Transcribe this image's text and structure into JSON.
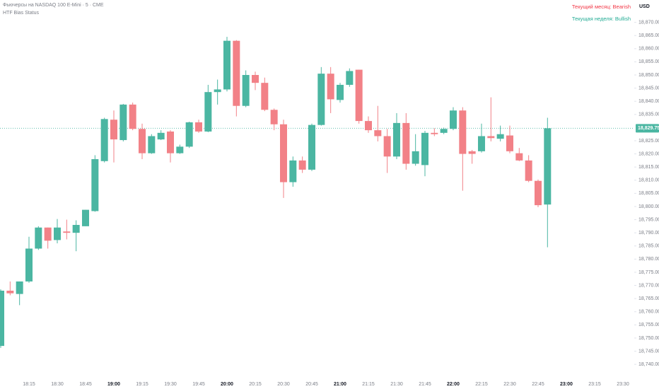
{
  "chart_data": {
    "type": "candlestick",
    "title": "Фьючерсы на NASDAQ 100 E-Mini · 5 · CME",
    "subtitle": "HTF Bias Status",
    "currency": "USD",
    "annotations": [
      {
        "text": "Текущий месяц: Bearish",
        "color": "#f23645"
      },
      {
        "text": "Текущая неделя: Bullish",
        "color": "#22ab94"
      }
    ],
    "up_color": "#4bb6a2",
    "down_color": "#f28187",
    "last_price": {
      "value": 18829.75,
      "label": "18,829.75"
    },
    "categories": [
      null,
      null,
      null,
      "18:15",
      null,
      null,
      "18:30",
      null,
      null,
      "18:45",
      null,
      null,
      "19:00",
      null,
      null,
      "19:15",
      null,
      null,
      "19:30",
      null,
      null,
      "19:45",
      null,
      null,
      "20:00",
      null,
      null,
      "20:15",
      null,
      null,
      "20:30",
      null,
      null,
      "20:45",
      null,
      null,
      "21:00",
      null,
      null,
      "21:15",
      null,
      null,
      "21:30",
      null,
      null,
      "21:45",
      null,
      null,
      "22:00",
      null,
      null,
      "22:15",
      null,
      null,
      "22:30",
      null,
      null,
      "22:45",
      null,
      null,
      "23:00",
      null,
      null,
      "23:15",
      null,
      null,
      "23:30",
      null
    ],
    "open": [
      18747,
      18768,
      18766.75,
      18771.5,
      18784,
      18792,
      18787.25,
      18790.5,
      18790,
      18792.5,
      18798.25,
      18817.25,
      18833,
      18825.25,
      18838.75,
      18829.5,
      18820.25,
      18825.5,
      18828.5,
      18820.25,
      18822.75,
      18832,
      18828.5,
      18843.5,
      18844.5,
      18863,
      18838.25,
      18850,
      18847,
      18836.75,
      18831.25,
      18809.25,
      18817.5,
      18814,
      18831,
      18850.5,
      18840.5,
      18846.25,
      18852,
      18832.5,
      18829,
      18826.75,
      18819,
      18831.75,
      18816.25,
      18815.75,
      18828,
      18828,
      18829.5,
      18836.5,
      18821,
      18821,
      18826.75,
      18825.75,
      18827,
      18820.25,
      18817.5,
      18809.75,
      18800.75,
      null,
      null,
      null,
      null,
      null,
      null,
      null,
      null,
      null
    ],
    "high": [
      18768.5,
      18771.5,
      18771.5,
      18788.5,
      18792.5,
      18792,
      18795.25,
      18795,
      18794.75,
      18798.75,
      18819.5,
      18833.75,
      18836.5,
      18839,
      18839.5,
      18831.5,
      18827.5,
      18829,
      18829,
      18823.5,
      18832.25,
      18833,
      18846.25,
      18848.25,
      18864.5,
      18863.25,
      18851.75,
      18851.25,
      18849,
      18837.25,
      18833,
      18819,
      18819,
      18831.5,
      18853,
      18853,
      18847,
      18852.5,
      18852,
      18834.25,
      18838.25,
      18829.5,
      18835.5,
      18835.5,
      18827.5,
      18828.75,
      18829.75,
      18830,
      18837.75,
      18837.75,
      18821.5,
      18831.5,
      18841.5,
      18830.75,
      18830.75,
      18822.25,
      18819.5,
      18810.25,
      18833.75,
      null,
      null,
      null,
      null,
      null,
      null,
      null,
      null,
      null
    ],
    "low": [
      18746.25,
      18766.25,
      18762.5,
      18771,
      18783.5,
      18784,
      18786,
      18787.5,
      18783,
      18792.5,
      18798,
      18816.75,
      18816.75,
      18824.75,
      18829,
      18818,
      18820,
      18825.25,
      18816.75,
      18820,
      18822.25,
      18828,
      18828.25,
      18838.75,
      18843.75,
      18834.25,
      18837.75,
      18844.25,
      18836.25,
      18829,
      18803.25,
      18807.5,
      18812.75,
      18813.5,
      18830.75,
      18835.5,
      18839.5,
      18845.5,
      18831.5,
      18828,
      18824.75,
      18812.75,
      18818,
      18814,
      18815.5,
      18811.5,
      18826.75,
      18827.5,
      18829,
      18806,
      18816.25,
      18820.5,
      18824.75,
      18824.75,
      18820.25,
      18817.25,
      18809.25,
      18799.75,
      18784.5,
      null,
      null,
      null,
      null,
      null,
      null,
      null,
      null,
      null
    ],
    "close": [
      18768,
      18767,
      18771.5,
      18784,
      18792,
      18787,
      18792,
      18790,
      18793,
      18798.75,
      18818,
      18833.25,
      18825.5,
      18838.75,
      18829.5,
      18820.25,
      18826.75,
      18828,
      18820.25,
      18822.75,
      18832,
      18828.5,
      18843.5,
      18844.5,
      18863,
      18838.25,
      18850,
      18847,
      18836.75,
      18831.25,
      18809.25,
      18817.5,
      18814,
      18831,
      18850.5,
      18840.75,
      18846.25,
      18851.5,
      18832.5,
      18829,
      18826.75,
      18819,
      18831.75,
      18816.25,
      18821,
      18828,
      18827.5,
      18829.5,
      18836.5,
      18820,
      18820,
      18826.75,
      18826,
      18827.5,
      18821,
      18817.5,
      18809.75,
      18800.5,
      18829.75,
      null,
      null,
      null,
      null,
      null,
      null,
      null,
      null,
      null
    ],
    "ylim": [
      18736,
      18878.5
    ],
    "yticks": [
      {
        "value": 18870,
        "label": "18,870.00"
      },
      {
        "value": 18865,
        "label": "18,865.00"
      },
      {
        "value": 18860,
        "label": "18,860.00"
      },
      {
        "value": 18855,
        "label": "18,855.00"
      },
      {
        "value": 18850,
        "label": "18,850.00"
      },
      {
        "value": 18845,
        "label": "18,845.00"
      },
      {
        "value": 18840,
        "label": "18,840.00"
      },
      {
        "value": 18835,
        "label": "18,835.00"
      },
      {
        "value": 18825,
        "label": "18,825.00"
      },
      {
        "value": 18820,
        "label": "18,820.00"
      },
      {
        "value": 18815,
        "label": "18,815.00"
      },
      {
        "value": 18810,
        "label": "18,810.00"
      },
      {
        "value": 18805,
        "label": "18,805.00"
      },
      {
        "value": 18800,
        "label": "18,800.00"
      },
      {
        "value": 18795,
        "label": "18,795.00"
      },
      {
        "value": 18790,
        "label": "18,790.00"
      },
      {
        "value": 18785,
        "label": "18,785.00"
      },
      {
        "value": 18780,
        "label": "18,780.00"
      },
      {
        "value": 18775,
        "label": "18,775.00"
      },
      {
        "value": 18770,
        "label": "18,770.00"
      },
      {
        "value": 18765,
        "label": "18,765.00"
      },
      {
        "value": 18760,
        "label": "18,760.00"
      },
      {
        "value": 18755,
        "label": "18,755.00"
      },
      {
        "value": 18750,
        "label": "18,750.00"
      },
      {
        "value": 18745,
        "label": "18,745.00"
      },
      {
        "value": 18740,
        "label": "18,740.00"
      }
    ],
    "grid": false
  }
}
